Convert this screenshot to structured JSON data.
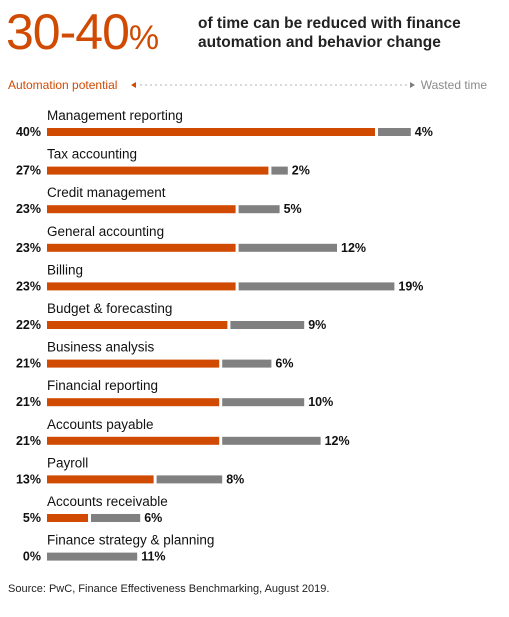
{
  "headline": {
    "big_number": "30-40",
    "big_unit": "%",
    "text": "of time can be reduced with finance automation and behavior change"
  },
  "legend": {
    "left_label": "Automation potential",
    "right_label": "Wasted time",
    "left_color": "#d04a02",
    "right_color": "#808080"
  },
  "chart_data": {
    "type": "bar",
    "orientation": "horizontal",
    "stacked": true,
    "categories": [
      "Management reporting",
      "Tax accounting",
      "Credit management",
      "General accounting",
      "Billing",
      "Budget & forecasting",
      "Business analysis",
      "Financial reporting",
      "Accounts payable",
      "Payroll",
      "Accounts receivable",
      "Finance strategy & planning"
    ],
    "series": [
      {
        "name": "Automation potential",
        "color": "#d04a02",
        "values": [
          40,
          27,
          23,
          23,
          23,
          22,
          21,
          21,
          21,
          13,
          5,
          0
        ],
        "labels": [
          "40%",
          "27%",
          "23%",
          "23%",
          "23%",
          "22%",
          "21%",
          "21%",
          "21%",
          "13%",
          "5%",
          "0%"
        ]
      },
      {
        "name": "Wasted time",
        "color": "#808080",
        "values": [
          4,
          2,
          5,
          12,
          19,
          9,
          6,
          10,
          12,
          8,
          6,
          11
        ],
        "labels": [
          "4%",
          "2%",
          "5%",
          "12%",
          "19%",
          "9%",
          "6%",
          "10%",
          "12%",
          "8%",
          "6%",
          "11%"
        ]
      }
    ],
    "grid": false,
    "legend_placement": "top"
  },
  "source": "Source: PwC, Finance Effectiveness Benchmarking, August 2019."
}
